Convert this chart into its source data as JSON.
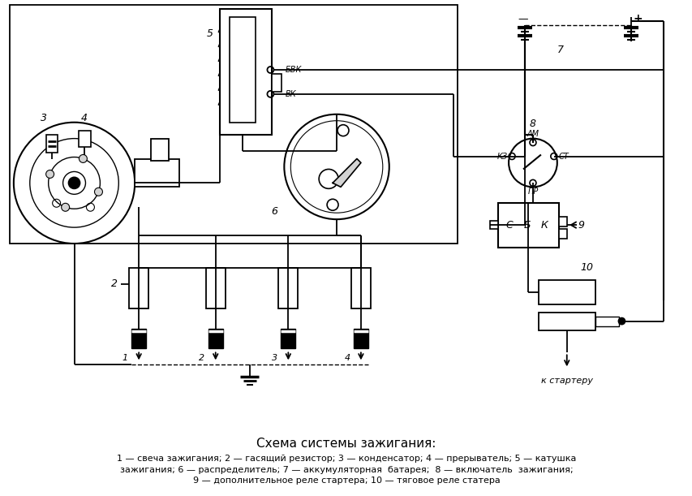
{
  "title": "Схема системы зажигания:",
  "caption_line1": "1 — свеча зажигания; 2 — гасящий резистор; 3 — конденсатор; 4 — прерыватель; 5 — катушка",
  "caption_line2": "зажигания; 6 — распределитель; 7 — аккумуляторная  батарея;  8 — включатель  зажигания;",
  "caption_line3": "9 — дополнительное реле стартера; 10 — тяговое реле статера",
  "bg_color": "#ffffff",
  "line_color": "#000000",
  "label_BVK": "БВК",
  "label_VK": "ВК",
  "label_KZ": "КЗ",
  "label_AM": "АМ",
  "label_ST": "СТ",
  "label_PR": "ПР",
  "label_C": "С",
  "label_B": "Б",
  "label_K": "К",
  "label_k_starter": "к стартеру",
  "label_5": "5",
  "label_6": "6",
  "label_7": "7",
  "label_8": "8",
  "label_9": "9",
  "label_10": "10",
  "label_2": "2",
  "label_3": "3",
  "label_4": "4",
  "label_plus": "+",
  "label_minus": "—",
  "spark_labels": [
    "1",
    "2",
    "3",
    "4"
  ]
}
